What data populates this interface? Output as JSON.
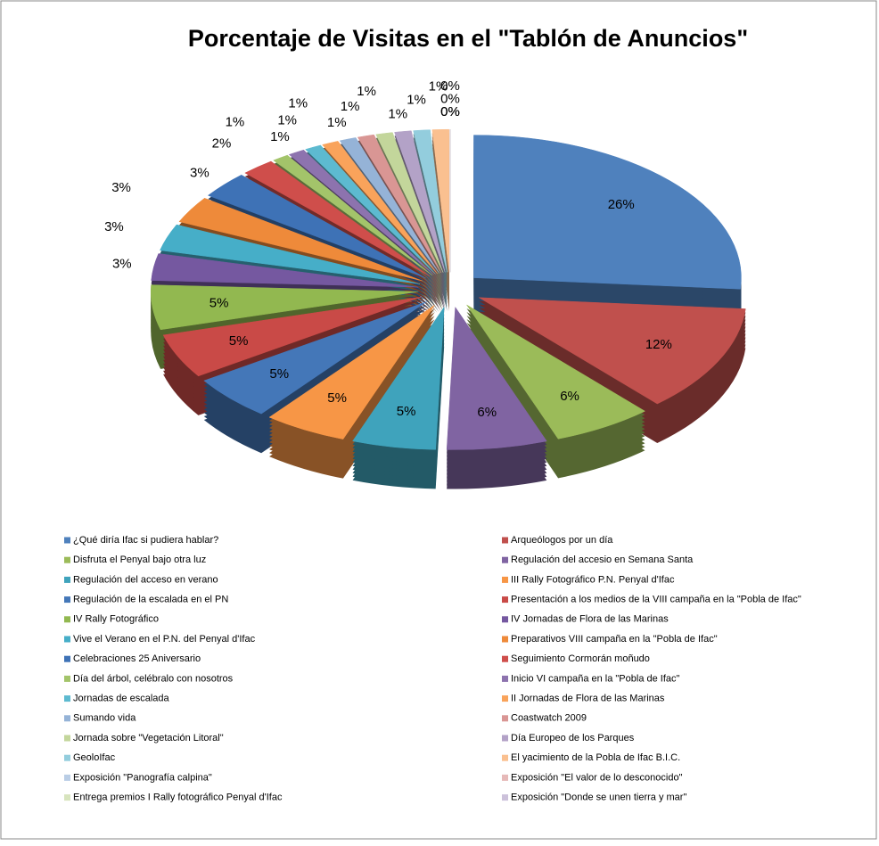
{
  "chart_data": {
    "type": "pie",
    "title": "Porcentaje de Visitas  en el \"Tablón de Anuncios\"",
    "categories": [
      "¿Qué diría Ifac si pudiera hablar?",
      "Arqueólogos por un día",
      "Disfruta el Penyal bajo otra luz",
      "Regulación del accesio en Semana Santa",
      "Regulación del acceso en verano",
      "III Rally Fotográfico P.N. Penyal d'Ifac",
      "Regulación de la escalada en el PN",
      "Presentación a los medios de la VIII campaña en la \"Pobla de Ifac\"",
      "IV Rally Fotográfico",
      "IV Jornadas de Flora de las Marinas",
      "Vive el Verano en el P.N. del Penyal d'Ifac",
      "Preparativos VIII campaña en la \"Pobla de Ifac\"",
      "Celebraciones 25 Aniversario",
      "Seguimiento Cormorán moñudo",
      "Día del árbol, celébralo con nosotros",
      "Inicio VI campaña en la \"Pobla de Ifac\"",
      "Jornadas de escalada",
      "II Jornadas de Flora de las Marinas",
      "Sumando vida",
      "Coastwatch 2009",
      "Jornada sobre \"Vegetación Litoral\"",
      "Día Europeo de los Parques",
      "GeoloIfac",
      "El yacimiento de la Pobla de Ifac B.I.C.",
      "Exposición \"Panografía calpina\"",
      "Exposición \"El valor de lo desconocido\"",
      "Entrega premios I Rally fotográfico Penyal d'Ifac",
      "Exposición \"Donde se unen tierra y mar\""
    ],
    "values": [
      26,
      12,
      6,
      6,
      5,
      5,
      5,
      5,
      5,
      3,
      3,
      3,
      3,
      2,
      1,
      1,
      1,
      1,
      1,
      1,
      1,
      1,
      1,
      1,
      0,
      0,
      0,
      0
    ],
    "value_labels": [
      "26%",
      "12%",
      "6%",
      "6%",
      "5%",
      "5%",
      "5%",
      "5%",
      "5%",
      "3%",
      "3%",
      "3%",
      "3%",
      "2%",
      "1%",
      "1%",
      "1%",
      "1%",
      "1%",
      "1%",
      "1%",
      "1%",
      "1%",
      "1%",
      "0%",
      "0%",
      "0%",
      "0%"
    ],
    "colors": [
      "#4F81BD",
      "#C0504D",
      "#9BBB59",
      "#8064A2",
      "#3FA3BC",
      "#F79646",
      "#4477B8",
      "#C94A47",
      "#92B850",
      "#7558A0",
      "#46AEC8",
      "#EE8A3A",
      "#3E72B6",
      "#CF4E4B",
      "#A3C46A",
      "#8D73AE",
      "#5DBAD0",
      "#F9A35B",
      "#95B3D7",
      "#D99694",
      "#C3D69B",
      "#B3A2C7",
      "#93CDDD",
      "#FAC090",
      "#B9CDE5",
      "#E6B9B8",
      "#D7E4BD",
      "#CCC1DA"
    ],
    "legend": "bottom"
  }
}
